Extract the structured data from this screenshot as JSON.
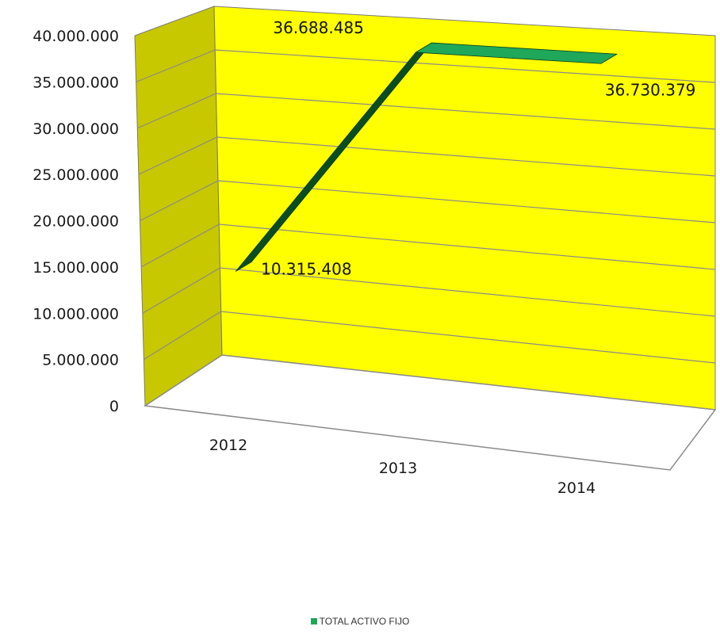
{
  "chart_data": {
    "type": "line",
    "style": "3d",
    "categories": [
      "2012",
      "2013",
      "2014"
    ],
    "series": [
      {
        "name": "TOTAL ACTIVO FIJO",
        "values": [
          10315408,
          36688485,
          36730379
        ]
      }
    ],
    "data_labels": [
      "10.315.408",
      "36.688.485",
      "36.730.379"
    ],
    "y_ticks": [
      "0",
      "5.000.000",
      "10.000.000",
      "15.000.000",
      "20.000.000",
      "25.000.000",
      "30.000.000",
      "35.000.000",
      "40.000.000"
    ],
    "ylim": [
      0,
      40000000
    ],
    "grid": true,
    "legend_position": "bottom",
    "colors": {
      "back_wall": "#ffff00",
      "side_wall": "#c8c800",
      "line_top": "#1fa85a",
      "line_side": "#0b4d22",
      "gridline": "#8a8a8a"
    }
  }
}
